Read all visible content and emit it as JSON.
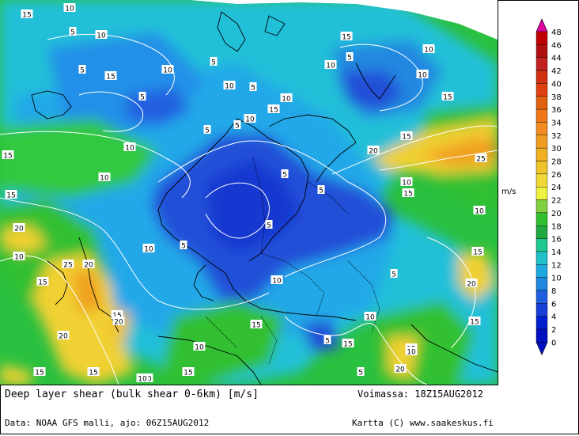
{
  "title": "Deep layer shear (bulk shear 0-6km) [m/s]",
  "valid": "Voimassa: 18Z15AUG2012",
  "source": "Data: NOAA GFS malli, ajo: 06Z15AUG2012",
  "credit": "Kartta (C) www.saakeskus.fi",
  "legend": {
    "unit": "m/s",
    "levels": [
      "48",
      "46",
      "44",
      "42",
      "40",
      "38",
      "36",
      "34",
      "32",
      "30",
      "28",
      "26",
      "24",
      "22",
      "20",
      "18",
      "16",
      "14",
      "12",
      "10",
      "8",
      "6",
      "4",
      "2",
      "0"
    ],
    "colors": [
      "#e000a0",
      "#c00000",
      "#b01010",
      "#c02020",
      "#d03010",
      "#e04010",
      "#e06010",
      "#f07818",
      "#f08c20",
      "#f09c20",
      "#f0b020",
      "#f0c428",
      "#f0d838",
      "#f0f040",
      "#80d040",
      "#30c030",
      "#20a840",
      "#20c890",
      "#20c0c8",
      "#20a8e0",
      "#2088e0",
      "#2060e0",
      "#1840d8",
      "#0020d0",
      "#0010c0"
    ]
  },
  "contour_labels": [
    {
      "text": "15"
    },
    {
      "text": "10"
    },
    {
      "text": "5"
    },
    {
      "text": "10"
    },
    {
      "text": "5"
    },
    {
      "text": "15"
    },
    {
      "text": "10"
    },
    {
      "text": "5"
    },
    {
      "text": "10"
    },
    {
      "text": "5"
    },
    {
      "text": "5"
    },
    {
      "text": "5"
    },
    {
      "text": "10"
    },
    {
      "text": "15"
    },
    {
      "text": "10"
    },
    {
      "text": "10"
    },
    {
      "text": "5"
    },
    {
      "text": "5"
    },
    {
      "text": "10"
    },
    {
      "text": "15"
    },
    {
      "text": "15"
    },
    {
      "text": "10"
    },
    {
      "text": "5"
    },
    {
      "text": "10"
    },
    {
      "text": "15"
    },
    {
      "text": "20"
    },
    {
      "text": "15"
    },
    {
      "text": "25"
    },
    {
      "text": "15"
    },
    {
      "text": "10"
    },
    {
      "text": "5"
    },
    {
      "text": "10"
    },
    {
      "text": "15"
    },
    {
      "text": "20"
    },
    {
      "text": "10"
    },
    {
      "text": "5"
    },
    {
      "text": "5"
    },
    {
      "text": "5"
    },
    {
      "text": "5"
    },
    {
      "text": "10"
    },
    {
      "text": "10"
    },
    {
      "text": "15"
    },
    {
      "text": "10"
    },
    {
      "text": "15"
    },
    {
      "text": "20"
    },
    {
      "text": "25"
    },
    {
      "text": "15"
    },
    {
      "text": "20"
    },
    {
      "text": "20"
    },
    {
      "text": "10"
    },
    {
      "text": "15"
    },
    {
      "text": "10"
    },
    {
      "text": "15"
    },
    {
      "text": "15"
    },
    {
      "text": "5"
    },
    {
      "text": "10"
    },
    {
      "text": "20"
    },
    {
      "text": "15"
    },
    {
      "text": "20"
    },
    {
      "text": "10"
    },
    {
      "text": "15"
    },
    {
      "text": "15"
    },
    {
      "text": "5"
    },
    {
      "text": "10"
    },
    {
      "text": "15"
    }
  ]
}
